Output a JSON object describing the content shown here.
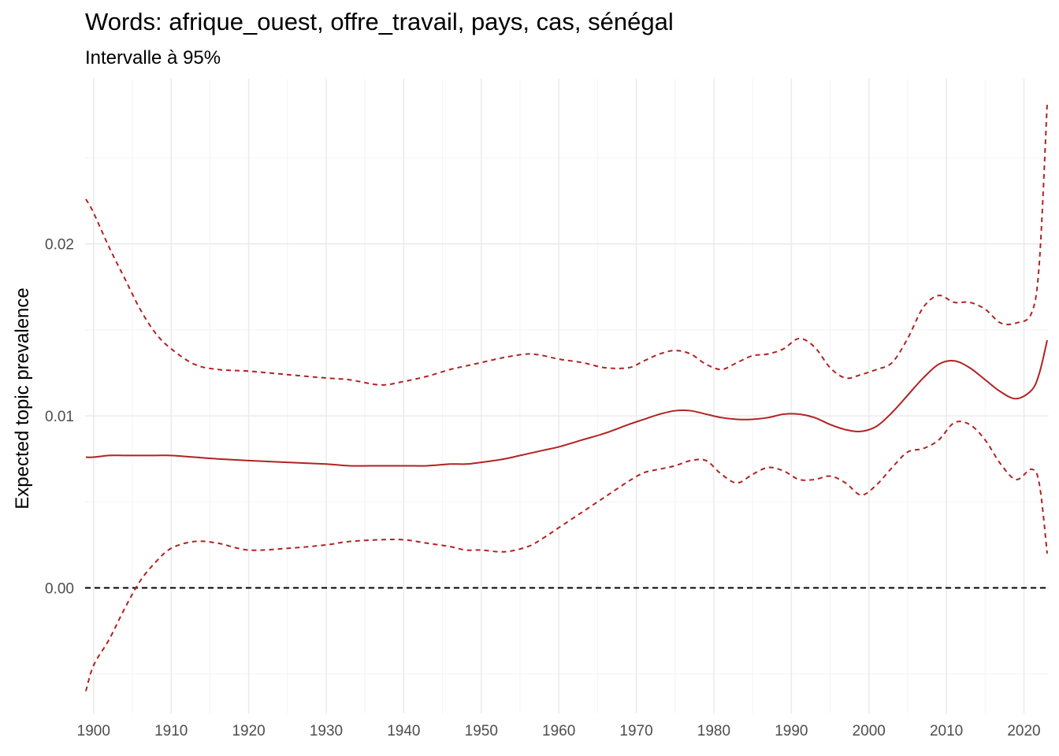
{
  "chart_data": {
    "type": "line",
    "title": "Words: afrique_ouest, offre_travail, pays, cas, sénégal",
    "subtitle": "Intervalle à 95%",
    "xlabel": "",
    "ylabel": "Expected topic prevalence",
    "xlim": [
      1898.9,
      2023.2
    ],
    "ylim": [
      -0.0073,
      0.0296
    ],
    "x_ticks": [
      "1900",
      "1910",
      "1920",
      "1930",
      "1940",
      "1950",
      "1960",
      "1970",
      "1980",
      "1990",
      "2000",
      "2010",
      "2020"
    ],
    "y_ticks": [
      "0.00",
      "0.01",
      "0.02"
    ],
    "grid": true,
    "reference_line": 0,
    "colors": {
      "series": "#b22222",
      "reference": "#000000",
      "grid": "#ebebeb"
    },
    "x": [
      1899,
      1900,
      1902,
      1904,
      1906,
      1908,
      1910,
      1913,
      1916,
      1920,
      1925,
      1930,
      1933,
      1937,
      1940,
      1943,
      1946,
      1948,
      1950,
      1953,
      1956,
      1958,
      1960,
      1963,
      1966,
      1969,
      1971,
      1973,
      1975,
      1977,
      1979,
      1981,
      1983,
      1985,
      1987,
      1989,
      1991,
      1993,
      1995,
      1997,
      1999,
      2001,
      2003,
      2005,
      2007,
      2009,
      2011,
      2013,
      2015,
      2017,
      2019,
      2021,
      2022,
      2023
    ],
    "series": [
      {
        "name": "",
        "style": "solid",
        "values": [
          0.0076,
          0.0076,
          0.0077,
          0.0077,
          0.0077,
          0.0077,
          0.0077,
          0.0076,
          0.0075,
          0.0074,
          0.0073,
          0.0072,
          0.0071,
          0.0071,
          0.0071,
          0.0071,
          0.0072,
          0.0072,
          0.0073,
          0.0075,
          0.0078,
          0.008,
          0.0082,
          0.0086,
          0.009,
          0.0095,
          0.0098,
          0.0101,
          0.0103,
          0.0103,
          0.0101,
          0.0099,
          0.0098,
          0.0098,
          0.0099,
          0.0101,
          0.0101,
          0.0099,
          0.0095,
          0.0092,
          0.0091,
          0.0094,
          0.0102,
          0.0112,
          0.0122,
          0.013,
          0.0132,
          0.0128,
          0.0121,
          0.0114,
          0.011,
          0.0115,
          0.0125,
          0.0144
        ]
      },
      {
        "name": "",
        "style": "dashed",
        "values": [
          0.0226,
          0.0218,
          0.0198,
          0.018,
          0.0162,
          0.0148,
          0.0139,
          0.013,
          0.0127,
          0.0126,
          0.0124,
          0.0122,
          0.0121,
          0.0118,
          0.012,
          0.0123,
          0.0127,
          0.0129,
          0.0131,
          0.0134,
          0.0136,
          0.0135,
          0.0133,
          0.0131,
          0.0128,
          0.0128,
          0.0132,
          0.0136,
          0.0138,
          0.0136,
          0.013,
          0.0127,
          0.0131,
          0.0135,
          0.0136,
          0.0139,
          0.0145,
          0.014,
          0.0128,
          0.0122,
          0.0124,
          0.0127,
          0.0131,
          0.0145,
          0.0163,
          0.017,
          0.0166,
          0.0166,
          0.0162,
          0.0154,
          0.0154,
          0.016,
          0.019,
          0.0282
        ]
      },
      {
        "name": "",
        "style": "dashed",
        "values": [
          -0.006,
          -0.0045,
          -0.003,
          -0.0012,
          0.0004,
          0.0015,
          0.0023,
          0.0027,
          0.0026,
          0.0022,
          0.0023,
          0.0025,
          0.0027,
          0.0028,
          0.0028,
          0.0026,
          0.0024,
          0.0022,
          0.0022,
          0.0021,
          0.0024,
          0.0029,
          0.0035,
          0.0044,
          0.0053,
          0.0062,
          0.0067,
          0.0069,
          0.0071,
          0.0074,
          0.0074,
          0.0066,
          0.0061,
          0.0066,
          0.007,
          0.0068,
          0.0063,
          0.0063,
          0.0065,
          0.0061,
          0.0054,
          0.006,
          0.007,
          0.0079,
          0.0081,
          0.0086,
          0.0096,
          0.0095,
          0.0086,
          0.0072,
          0.0063,
          0.0069,
          0.006,
          0.002
        ]
      }
    ]
  }
}
